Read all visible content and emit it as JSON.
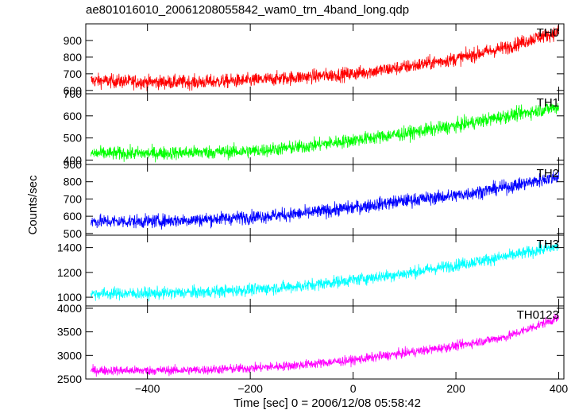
{
  "title": "ae801016010_20061208055842_wam0_trn_4band_long.qdp",
  "chart_data": {
    "type": "line",
    "xlabel": "Time [sec] 0 = 2006/12/08 05:58:42",
    "ylabel": "Counts/sec",
    "xlim": [
      -520,
      410
    ],
    "x_ticks": [
      -400,
      -200,
      0,
      200,
      400
    ],
    "x_tick_labels": [
      "−400",
      "−200",
      "0",
      "200",
      "400"
    ],
    "grid": false,
    "panels": [
      {
        "series_name": "TH0",
        "color": "#ff0000",
        "ylim": [
          580,
          1000
        ],
        "y_ticks": [
          600,
          700,
          800,
          900
        ],
        "trend": [
          [
            -510,
            660
          ],
          [
            -400,
            650
          ],
          [
            -300,
            650
          ],
          [
            -200,
            660
          ],
          [
            -100,
            680
          ],
          [
            0,
            700
          ],
          [
            100,
            740
          ],
          [
            200,
            790
          ],
          [
            300,
            860
          ],
          [
            360,
            920
          ],
          [
            400,
            950
          ]
        ],
        "noise": 30
      },
      {
        "series_name": "TH1",
        "color": "#00ff00",
        "ylim": [
          380,
          700
        ],
        "y_ticks": [
          400,
          500,
          600,
          700
        ],
        "trend": [
          [
            -510,
            430
          ],
          [
            -400,
            430
          ],
          [
            -300,
            435
          ],
          [
            -200,
            440
          ],
          [
            -100,
            460
          ],
          [
            0,
            490
          ],
          [
            100,
            520
          ],
          [
            200,
            555
          ],
          [
            300,
            600
          ],
          [
            400,
            640
          ]
        ],
        "noise": 22
      },
      {
        "series_name": "TH2",
        "color": "#0000ff",
        "ylim": [
          490,
          900
        ],
        "y_ticks": [
          500,
          600,
          700,
          800,
          900
        ],
        "trend": [
          [
            -510,
            570
          ],
          [
            -400,
            570
          ],
          [
            -300,
            580
          ],
          [
            -200,
            595
          ],
          [
            -100,
            615
          ],
          [
            0,
            650
          ],
          [
            100,
            690
          ],
          [
            200,
            720
          ],
          [
            300,
            770
          ],
          [
            400,
            830
          ]
        ],
        "noise": 28
      },
      {
        "series_name": "TH3",
        "color": "#00ffff",
        "ylim": [
          930,
          1500
        ],
        "y_ticks": [
          1000,
          1200,
          1400
        ],
        "trend": [
          [
            -510,
            1030
          ],
          [
            -400,
            1030
          ],
          [
            -300,
            1040
          ],
          [
            -200,
            1060
          ],
          [
            -100,
            1090
          ],
          [
            0,
            1140
          ],
          [
            100,
            1190
          ],
          [
            200,
            1260
          ],
          [
            300,
            1330
          ],
          [
            400,
            1410
          ]
        ],
        "noise": 35
      },
      {
        "series_name": "TH0123",
        "color": "#ff00ff",
        "ylim": [
          2500,
          4050
        ],
        "y_ticks": [
          2500,
          3000,
          3500,
          4000
        ],
        "trend": [
          [
            -510,
            2680
          ],
          [
            -400,
            2680
          ],
          [
            -300,
            2690
          ],
          [
            -200,
            2730
          ],
          [
            -100,
            2800
          ],
          [
            0,
            2900
          ],
          [
            100,
            3050
          ],
          [
            200,
            3200
          ],
          [
            300,
            3400
          ],
          [
            400,
            3800
          ]
        ],
        "noise": 70
      }
    ]
  }
}
